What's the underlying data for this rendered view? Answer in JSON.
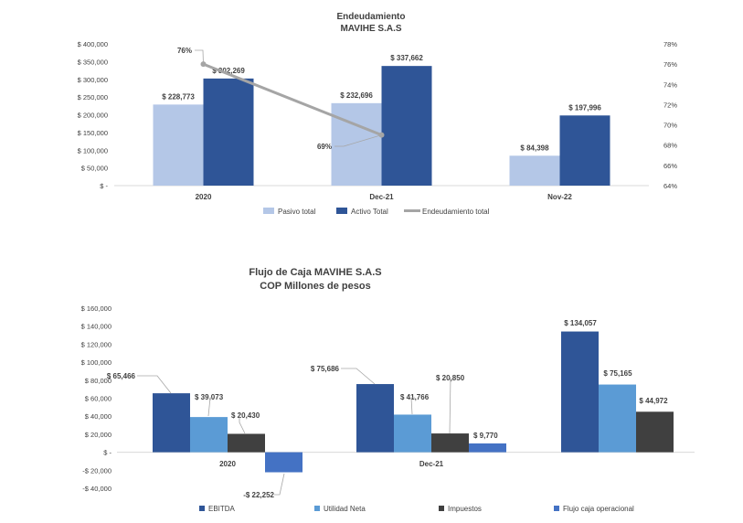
{
  "chart_data": [
    {
      "type": "bar",
      "title": "Endeudamiento",
      "subtitle": "MAVIHE S.A.S",
      "categories": [
        "2020",
        "Dec-21",
        "Nov-22"
      ],
      "series": [
        {
          "name": "Pasivo total",
          "values": [
            228773,
            232696,
            84398
          ],
          "labels": [
            "$ 228,773",
            "$ 232,696",
            "$ 84,398"
          ],
          "color": "#B4C7E7"
        },
        {
          "name": "Activo Total",
          "values": [
            302269,
            337662,
            197996
          ],
          "labels": [
            "$ 302,269",
            "$ 337,662",
            "$ 197,996"
          ],
          "color": "#2F5597"
        }
      ],
      "line_series": {
        "name": "Endeudamiento total",
        "values": [
          76,
          69
        ],
        "labels": [
          "76%",
          "69%"
        ],
        "color": "#A5A5A5",
        "axis": "right"
      },
      "yticks": [
        "$ 400,000",
        "$ 350,000",
        "$ 300,000",
        "$ 250,000",
        "$ 200,000",
        "$ 150,000",
        "$ 100,000",
        "$ 50,000",
        "$ -"
      ],
      "ylim": [
        0,
        400000
      ],
      "y2ticks": [
        "78%",
        "76%",
        "74%",
        "72%",
        "70%",
        "68%",
        "66%",
        "64%"
      ],
      "y2lim": [
        64,
        78
      ],
      "legend_position": "bottom"
    },
    {
      "type": "bar",
      "title": "Flujo de Caja MAVIHE S.A.S",
      "subtitle": "COP Millones de pesos",
      "categories": [
        "2020",
        "Dec-21",
        ""
      ],
      "series": [
        {
          "name": "EBITDA",
          "values": [
            65466,
            75686,
            134057
          ],
          "labels": [
            "$ 65,466",
            "$ 75,686",
            "$ 134,057"
          ],
          "color": "#2F5597"
        },
        {
          "name": "Utilidad Neta",
          "values": [
            39073,
            41766,
            75165
          ],
          "labels": [
            "$ 39,073",
            "$ 41,766",
            "$ 75,165"
          ],
          "color": "#5B9BD5"
        },
        {
          "name": "Impuestos",
          "values": [
            20430,
            20850,
            44972
          ],
          "labels": [
            "$ 20,430",
            "$ 20,850",
            "$ 44,972"
          ],
          "color": "#404040"
        },
        {
          "name": "Flujo caja operacional",
          "values": [
            -22252,
            9770,
            null
          ],
          "labels": [
            "-$ 22,252",
            "$ 9,770",
            ""
          ],
          "color": "#4472C4"
        }
      ],
      "yticks": [
        "$ 160,000",
        "$ 140,000",
        "$ 120,000",
        "$ 100,000",
        "$ 80,000",
        "$ 60,000",
        "$ 40,000",
        "$ 20,000",
        "$ -",
        "-$ 20,000",
        "-$ 40,000"
      ],
      "ylim": [
        -40000,
        160000
      ],
      "legend_position": "bottom"
    }
  ]
}
